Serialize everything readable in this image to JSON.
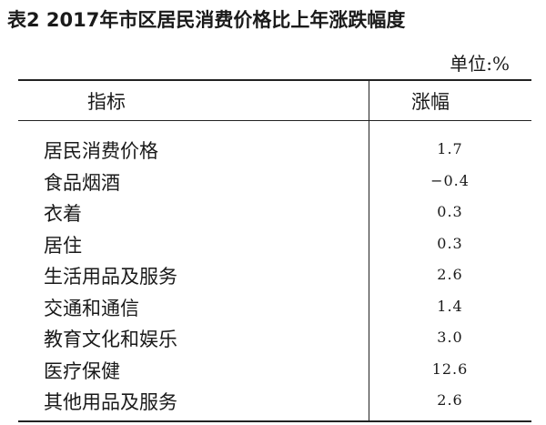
{
  "title": "表2 2017年市区居民消费价格比上年涨跌幅度",
  "unit": "单位:%",
  "table": {
    "header": [
      "指标",
      "涨幅"
    ],
    "rows": [
      [
        "居民消费价格",
        "1.7"
      ],
      [
        "食品烟酒",
        "−0.4"
      ],
      [
        "衣着",
        "0.3"
      ],
      [
        "居住",
        "0.3"
      ],
      [
        "生活用品及服务",
        "2.6"
      ],
      [
        "交通和通信",
        "1.4"
      ],
      [
        "教育文化和娱乐",
        "3.0"
      ],
      [
        "医疗保健",
        "12.6"
      ],
      [
        "其他用品及服务",
        "2.6"
      ]
    ]
  }
}
